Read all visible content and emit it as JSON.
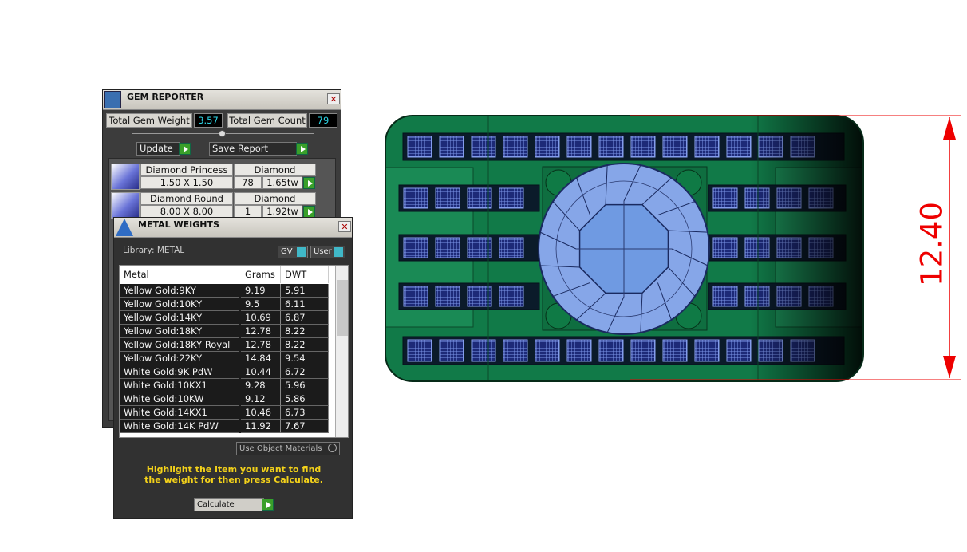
{
  "gem_reporter": {
    "title": "GEM REPORTER",
    "total_gem_weight_label": "Total Gem Weight",
    "total_gem_weight": "3.57",
    "total_gem_count_label": "Total Gem Count",
    "total_gem_count": "79",
    "update_button": "Update",
    "save_report_button": "Save Report",
    "gems": [
      {
        "name": "Diamond Princess",
        "material": "Diamond",
        "size": "1.50 X 1.50",
        "count": "78",
        "weight": "1.65tw"
      },
      {
        "name": "Diamond Round",
        "material": "Diamond",
        "size": "8.00 X 8.00",
        "count": "1",
        "weight": "1.92tw"
      }
    ]
  },
  "metal_weights": {
    "title": "METAL WEIGHTS",
    "library": "Library: METAL",
    "toggles": [
      "GV",
      "User"
    ],
    "table": {
      "header": [
        "Metal",
        "Grams",
        "DWT"
      ],
      "rows": [
        [
          "Yellow Gold:9KY",
          "9.19",
          "5.91"
        ],
        [
          "Yellow Gold:10KY",
          "9.5",
          "6.11"
        ],
        [
          "Yellow Gold:14KY",
          "10.69",
          "6.87"
        ],
        [
          "Yellow Gold:18KY",
          "12.78",
          "8.22"
        ],
        [
          "Yellow Gold:18KY Royal",
          "12.78",
          "8.22"
        ],
        [
          "Yellow Gold:22KY",
          "14.84",
          "9.54"
        ],
        [
          "White Gold:9K PdW",
          "10.44",
          "6.72"
        ],
        [
          "White Gold:10KX1",
          "9.28",
          "5.96"
        ],
        [
          "White Gold:10KW",
          "9.12",
          "5.86"
        ],
        [
          "White Gold:14KX1",
          "10.46",
          "6.73"
        ],
        [
          "White Gold:14K PdW",
          "11.92",
          "7.67"
        ]
      ]
    },
    "use_object_materials": "Use Object Materials",
    "instruction": "Highlight the item you want to find the weight for then press Calculate.",
    "calculate_button": "Calculate"
  },
  "viewport": {
    "dimension": "12.40"
  }
}
